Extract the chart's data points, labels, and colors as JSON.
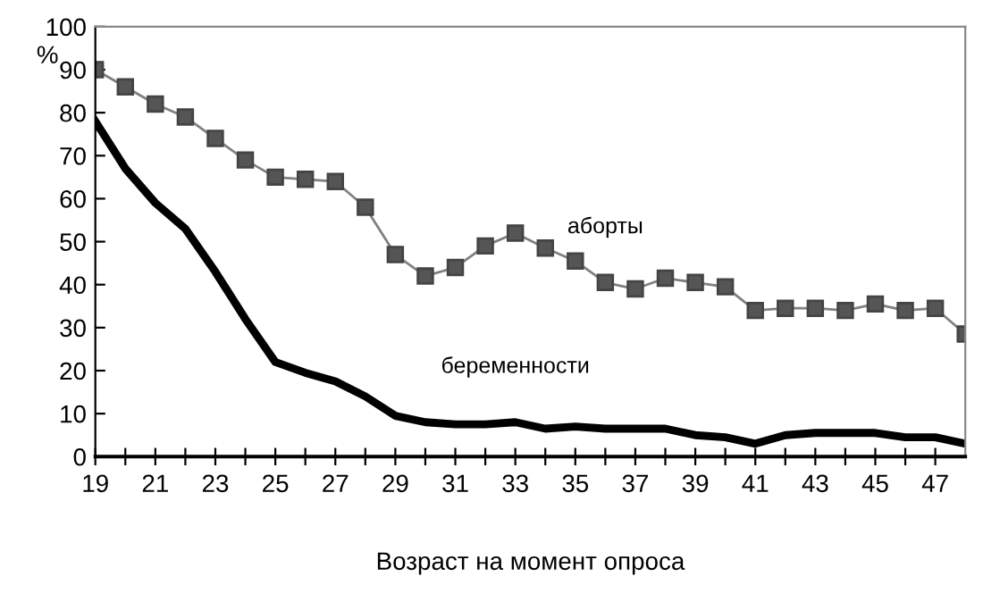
{
  "chart_data": {
    "type": "line",
    "xlabel": "Возраст на момент опроса",
    "ylabel": "%",
    "x": [
      19,
      20,
      21,
      22,
      23,
      24,
      25,
      26,
      27,
      28,
      29,
      30,
      31,
      32,
      33,
      34,
      35,
      36,
      37,
      38,
      39,
      40,
      41,
      42,
      43,
      44,
      45,
      46,
      47,
      48
    ],
    "series": [
      {
        "name": "аборты",
        "color": "#808080",
        "marker": "square",
        "values": [
          90,
          86,
          82,
          79,
          74,
          69,
          65,
          64.5,
          64,
          58,
          47,
          42,
          44,
          49,
          52,
          48.5,
          45.5,
          40.5,
          39,
          41.5,
          40.5,
          39.5,
          34,
          34.5,
          34.5,
          34,
          35.5,
          34,
          34.5,
          28.5
        ]
      },
      {
        "name": "беременности",
        "color": "#000000",
        "marker": "none",
        "values": [
          78,
          67,
          59,
          53,
          43,
          32,
          22,
          19.5,
          17.5,
          14,
          9.5,
          8,
          7.5,
          7.5,
          8,
          6.5,
          7,
          6.5,
          6.5,
          6.5,
          5,
          4.5,
          3,
          5,
          5.5,
          5.5,
          5.5,
          4.5,
          4.5,
          3
        ]
      }
    ],
    "xlim": [
      19,
      48
    ],
    "ylim": [
      0,
      100
    ],
    "xticks": [
      19,
      {
        "value": 20,
        "label": null
      },
      21,
      {
        "value": 22,
        "label": null
      },
      23,
      {
        "value": 24,
        "label": null
      },
      25,
      {
        "value": 26,
        "label": null
      },
      27,
      {
        "value": 28,
        "label": null
      },
      29,
      {
        "value": 30,
        "label": null
      },
      31,
      {
        "value": 32,
        "label": null
      },
      33,
      {
        "value": 34,
        "label": null
      },
      35,
      {
        "value": 36,
        "label": null
      },
      37,
      {
        "value": 38,
        "label": null
      },
      39,
      {
        "value": 40,
        "label": null
      },
      41,
      {
        "value": 42,
        "label": null
      },
      43,
      {
        "value": 44,
        "label": null
      },
      45,
      {
        "value": 46,
        "label": null
      },
      47
    ],
    "yticks": [
      0,
      10,
      20,
      30,
      40,
      50,
      60,
      70,
      80,
      90,
      100
    ],
    "grid": false,
    "legend": false,
    "line_style": "solid"
  }
}
